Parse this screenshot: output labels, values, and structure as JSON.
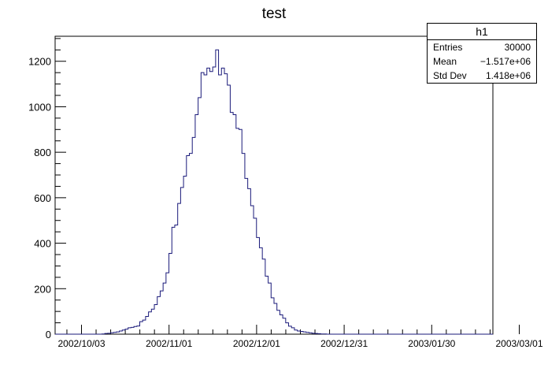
{
  "chart_data": {
    "type": "histogram",
    "title": "test",
    "xlabel": "",
    "ylabel": "",
    "x_tick_labels": [
      "2002/10/03",
      "2002/11/01",
      "2002/12/01",
      "2002/12/31",
      "2003/01/30",
      "2003/03/01"
    ],
    "x_range_bins": [
      0,
      150
    ],
    "ylim": [
      0,
      1310
    ],
    "y_ticks": [
      0,
      200,
      400,
      600,
      800,
      1000,
      1200
    ],
    "bin_first": 16,
    "values": [
      1,
      3,
      4,
      6,
      8,
      10,
      14,
      18,
      22,
      28,
      30,
      34,
      36,
      55,
      62,
      78,
      98,
      110,
      130,
      165,
      190,
      225,
      270,
      355,
      470,
      480,
      575,
      645,
      695,
      785,
      795,
      865,
      965,
      1040,
      1150,
      1140,
      1170,
      1155,
      1175,
      1250,
      1140,
      1170,
      1145,
      1095,
      975,
      965,
      905,
      900,
      795,
      685,
      640,
      565,
      510,
      425,
      380,
      330,
      255,
      225,
      160,
      135,
      105,
      85,
      70,
      50,
      35,
      28,
      18,
      14,
      12,
      10,
      8,
      6,
      4,
      3,
      2,
      1,
      1
    ],
    "line_color": "#1a1a7a",
    "stats": {
      "name": "h1",
      "rows": [
        {
          "label": "Entries",
          "value": "30000"
        },
        {
          "label": "Mean",
          "value": "−1.517e+06"
        },
        {
          "label": "Std Dev",
          "value": "1.418e+06"
        }
      ]
    }
  }
}
